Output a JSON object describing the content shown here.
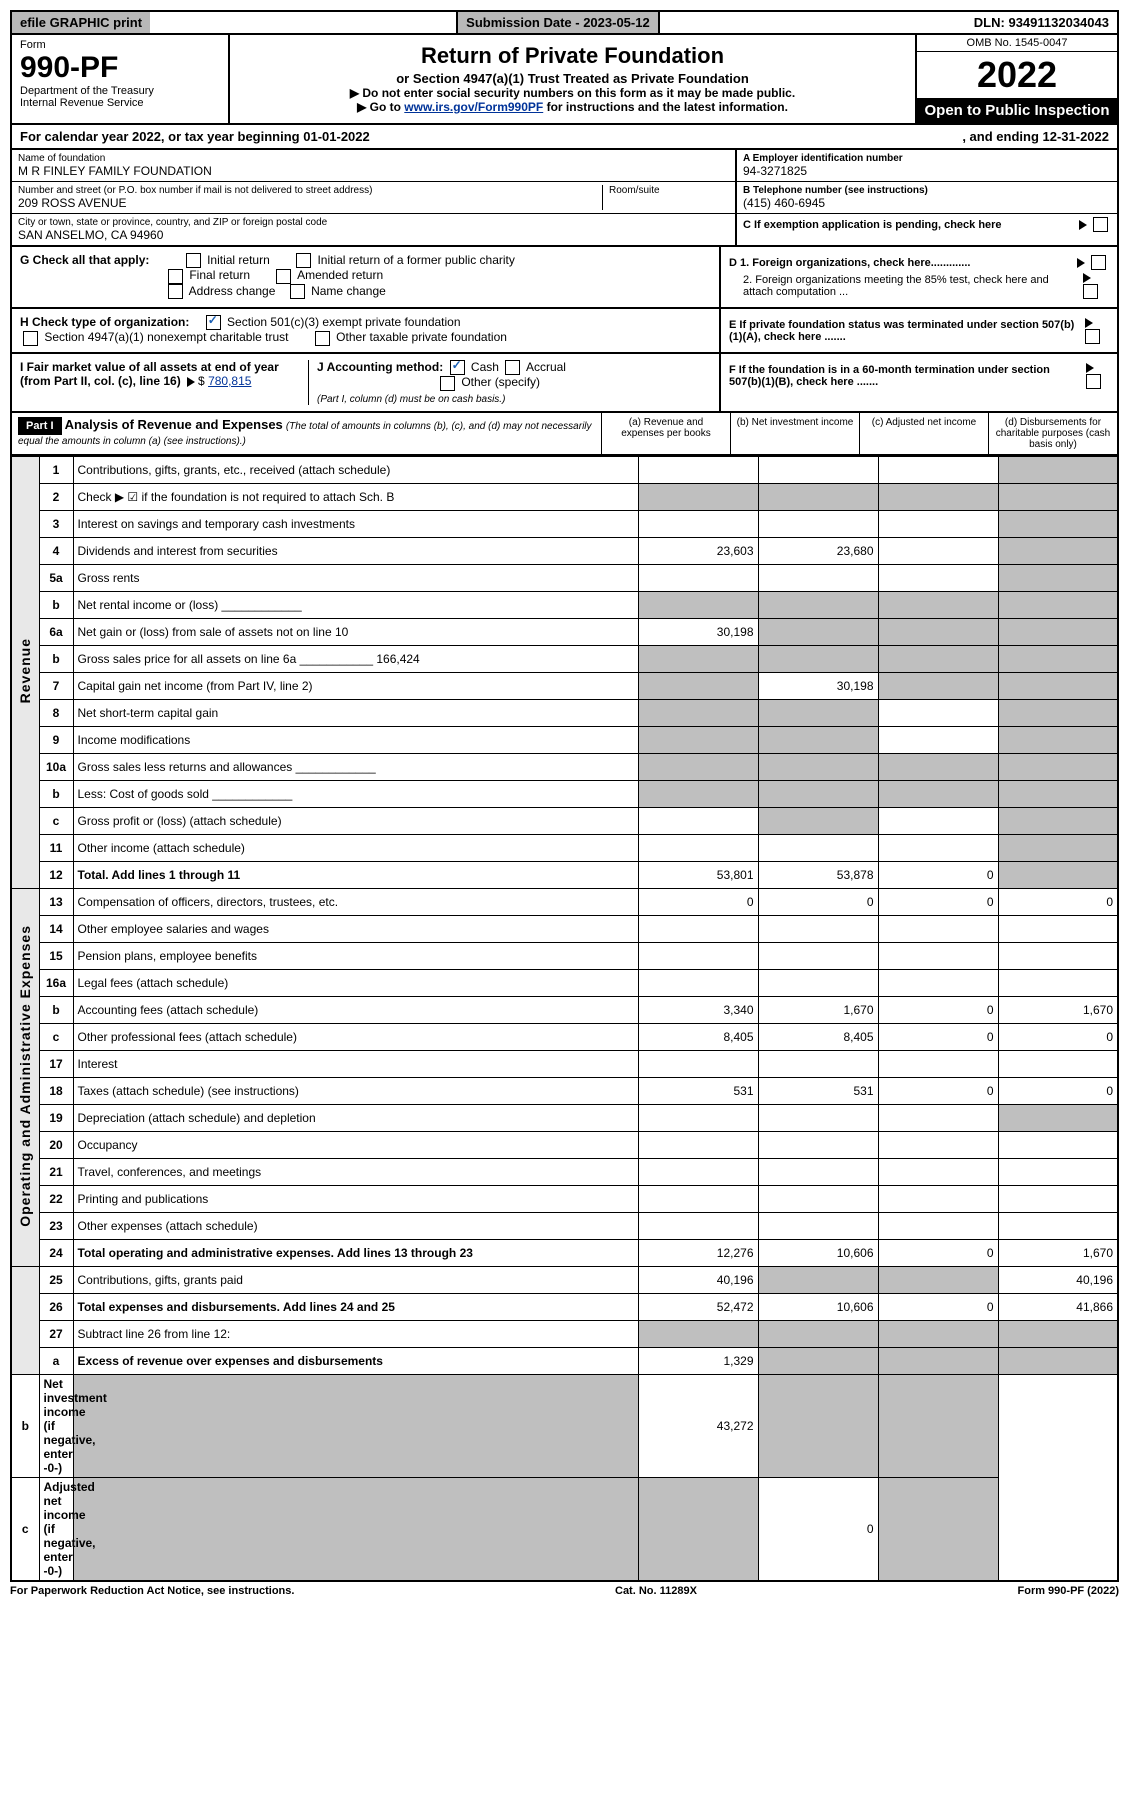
{
  "topbar": {
    "efile": "efile GRAPHIC print",
    "subdate_label": "Submission Date - ",
    "subdate": "2023-05-12",
    "dln_label": "DLN: ",
    "dln": "93491132034043"
  },
  "header": {
    "form_label": "Form",
    "form_no": "990-PF",
    "dept": "Department of the Treasury",
    "irs": "Internal Revenue Service",
    "title": "Return of Private Foundation",
    "subtitle": "or Section 4947(a)(1) Trust Treated as Private Foundation",
    "instr1": "▶ Do not enter social security numbers on this form as it may be made public.",
    "instr2_pre": "▶ Go to ",
    "instr2_link": "www.irs.gov/Form990PF",
    "instr2_post": " for instructions and the latest information.",
    "omb": "OMB No. 1545-0047",
    "year": "2022",
    "open": "Open to Public Inspection"
  },
  "calendar": {
    "pre": "For calendar year 2022, or tax year beginning ",
    "begin": "01-01-2022",
    "mid": ", and ending ",
    "end": "12-31-2022"
  },
  "foundation": {
    "name_label": "Name of foundation",
    "name": "M R FINLEY FAMILY FOUNDATION",
    "addr_label": "Number and street (or P.O. box number if mail is not delivered to street address)",
    "addr": "209 ROSS AVENUE",
    "room_label": "Room/suite",
    "city_label": "City or town, state or province, country, and ZIP or foreign postal code",
    "city": "SAN ANSELMO, CA  94960"
  },
  "ein": {
    "label": "A Employer identification number",
    "value": "94-3271825"
  },
  "tel": {
    "label": "B Telephone number (see instructions)",
    "value": "(415) 460-6945"
  },
  "c_label": "C If exemption application is pending, check here",
  "d1": "D 1. Foreign organizations, check here.............",
  "d2": "2. Foreign organizations meeting the 85% test, check here and attach computation ...",
  "e": "E If private foundation status was terminated under section 507(b)(1)(A), check here .......",
  "f": "F If the foundation is in a 60-month termination under section 507(b)(1)(B), check here .......",
  "g": {
    "label": "G Check all that apply:",
    "items": [
      "Initial return",
      "Initial return of a former public charity",
      "Final return",
      "Amended return",
      "Address change",
      "Name change"
    ]
  },
  "h": {
    "label": "H Check type of organization:",
    "opt1": "Section 501(c)(3) exempt private foundation",
    "opt2": "Section 4947(a)(1) nonexempt charitable trust",
    "opt3": "Other taxable private foundation"
  },
  "i": {
    "label": "I Fair market value of all assets at end of year (from Part II, col. (c), line 16)",
    "value": "780,815"
  },
  "j": {
    "label": "J Accounting method:",
    "cash": "Cash",
    "accrual": "Accrual",
    "other": "Other (specify)",
    "note": "(Part I, column (d) must be on cash basis.)"
  },
  "part1": {
    "label": "Part I",
    "title": "Analysis of Revenue and Expenses",
    "note": "(The total of amounts in columns (b), (c), and (d) may not necessarily equal the amounts in column (a) (see instructions).)",
    "cols": {
      "a": "(a) Revenue and expenses per books",
      "b": "(b) Net investment income",
      "c": "(c) Adjusted net income",
      "d": "(d) Disbursements for charitable purposes (cash basis only)"
    }
  },
  "vlabels": {
    "rev": "Revenue",
    "exp": "Operating and Administrative Expenses"
  },
  "rows": [
    {
      "n": "1",
      "d": "Contributions, gifts, grants, etc., received (attach schedule)",
      "a": "",
      "b": "",
      "c": "",
      "dgrey": true
    },
    {
      "n": "2",
      "d": "Check ▶ ☑ if the foundation is not required to attach Sch. B",
      "allgrey": true,
      "checked": true
    },
    {
      "n": "3",
      "d": "Interest on savings and temporary cash investments",
      "a": "",
      "b": "",
      "c": "",
      "dgrey": true
    },
    {
      "n": "4",
      "d": "Dividends and interest from securities",
      "a": "23,603",
      "b": "23,680",
      "c": "",
      "dgrey": true
    },
    {
      "n": "5a",
      "d": "Gross rents",
      "a": "",
      "b": "",
      "c": "",
      "dgrey": true
    },
    {
      "n": "b",
      "d": "Net rental income or (loss)",
      "inline": true,
      "allgrey": true
    },
    {
      "n": "6a",
      "d": "Net gain or (loss) from sale of assets not on line 10",
      "a": "30,198",
      "bgrey": true,
      "cgrey": true,
      "dgrey": true
    },
    {
      "n": "b",
      "d": "Gross sales price for all assets on line 6a",
      "inline_val": "166,424",
      "allgrey": true
    },
    {
      "n": "7",
      "d": "Capital gain net income (from Part IV, line 2)",
      "agrey": true,
      "b": "30,198",
      "cgrey": true,
      "dgrey": true
    },
    {
      "n": "8",
      "d": "Net short-term capital gain",
      "agrey": true,
      "bgrey": true,
      "c": "",
      "dgrey": true
    },
    {
      "n": "9",
      "d": "Income modifications",
      "agrey": true,
      "bgrey": true,
      "c": "",
      "dgrey": true
    },
    {
      "n": "10a",
      "d": "Gross sales less returns and allowances",
      "inline": true,
      "allgrey": true
    },
    {
      "n": "b",
      "d": "Less: Cost of goods sold",
      "inline": true,
      "allgrey": true
    },
    {
      "n": "c",
      "d": "Gross profit or (loss) (attach schedule)",
      "a": "",
      "bgrey": true,
      "c": "",
      "dgrey": true
    },
    {
      "n": "11",
      "d": "Other income (attach schedule)",
      "a": "",
      "b": "",
      "c": "",
      "dgrey": true
    },
    {
      "n": "12",
      "d": "Total. Add lines 1 through 11",
      "bold": true,
      "a": "53,801",
      "b": "53,878",
      "c": "0",
      "dgrey": true
    },
    {
      "n": "13",
      "d": "Compensation of officers, directors, trustees, etc.",
      "a": "0",
      "b": "0",
      "c": "0",
      "dv": "0"
    },
    {
      "n": "14",
      "d": "Other employee salaries and wages"
    },
    {
      "n": "15",
      "d": "Pension plans, employee benefits"
    },
    {
      "n": "16a",
      "d": "Legal fees (attach schedule)"
    },
    {
      "n": "b",
      "d": "Accounting fees (attach schedule)",
      "a": "3,340",
      "b": "1,670",
      "c": "0",
      "dv": "1,670"
    },
    {
      "n": "c",
      "d": "Other professional fees (attach schedule)",
      "a": "8,405",
      "b": "8,405",
      "c": "0",
      "dv": "0"
    },
    {
      "n": "17",
      "d": "Interest"
    },
    {
      "n": "18",
      "d": "Taxes (attach schedule) (see instructions)",
      "a": "531",
      "b": "531",
      "c": "0",
      "dv": "0"
    },
    {
      "n": "19",
      "d": "Depreciation (attach schedule) and depletion",
      "dgrey": true
    },
    {
      "n": "20",
      "d": "Occupancy"
    },
    {
      "n": "21",
      "d": "Travel, conferences, and meetings"
    },
    {
      "n": "22",
      "d": "Printing and publications"
    },
    {
      "n": "23",
      "d": "Other expenses (attach schedule)"
    },
    {
      "n": "24",
      "d": "Total operating and administrative expenses. Add lines 13 through 23",
      "bold": true,
      "a": "12,276",
      "b": "10,606",
      "c": "0",
      "dv": "1,670"
    },
    {
      "n": "25",
      "d": "Contributions, gifts, grants paid",
      "a": "40,196",
      "bgrey": true,
      "cgrey": true,
      "dv": "40,196"
    },
    {
      "n": "26",
      "d": "Total expenses and disbursements. Add lines 24 and 25",
      "bold": true,
      "a": "52,472",
      "b": "10,606",
      "c": "0",
      "dv": "41,866"
    },
    {
      "n": "27",
      "d": "Subtract line 26 from line 12:",
      "allgrey_cols": true
    },
    {
      "n": "a",
      "d": "Excess of revenue over expenses and disbursements",
      "bold": true,
      "a": "1,329",
      "bgrey": true,
      "cgrey": true,
      "dgrey": true
    },
    {
      "n": "b",
      "d": "Net investment income (if negative, enter -0-)",
      "bold": true,
      "agrey": true,
      "b": "43,272",
      "cgrey": true,
      "dgrey": true
    },
    {
      "n": "c",
      "d": "Adjusted net income (if negative, enter -0-)",
      "bold": true,
      "agrey": true,
      "bgrey": true,
      "c": "0",
      "dgrey": true
    }
  ],
  "footer": {
    "left": "For Paperwork Reduction Act Notice, see instructions.",
    "mid": "Cat. No. 11289X",
    "right": "Form 990-PF (2022)"
  }
}
